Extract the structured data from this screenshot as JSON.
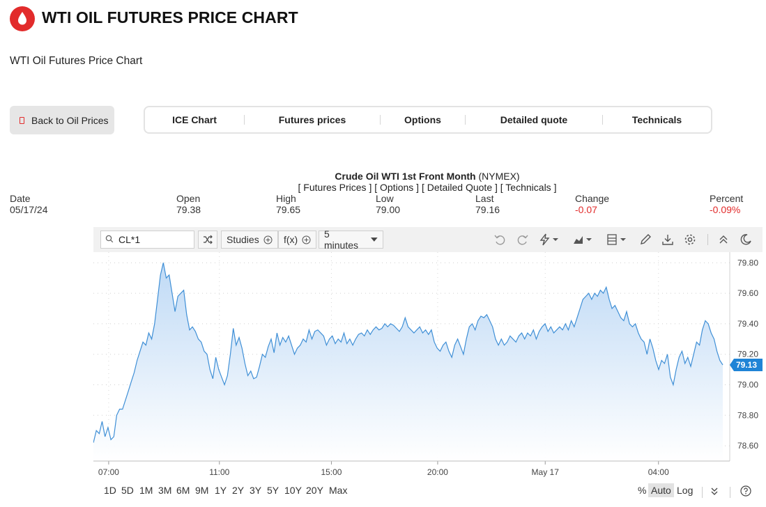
{
  "header": {
    "title": "WTI OIL FUTURES PRICE CHART",
    "subtitle": "WTI Oil Futures Price Chart",
    "logo_icon": "oil-drop-icon",
    "brand_color": "#e22b2b"
  },
  "nav": {
    "back_label": "Back to Oil Prices",
    "tabs": [
      {
        "label": "ICE Chart"
      },
      {
        "label": "Futures prices"
      },
      {
        "label": "Options"
      },
      {
        "label": "Detailed quote"
      },
      {
        "label": "Technicals"
      }
    ]
  },
  "quote": {
    "name": "Crude Oil WTI 1st Front Month",
    "exchange": "(NYMEX)",
    "links": [
      "[ Futures Prices ]",
      "[ Options ]",
      "[ Detailed Quote ]",
      "[ Technicals ]"
    ],
    "stats": [
      {
        "label": "Date",
        "value": "05/17/24",
        "negative": false
      },
      {
        "label": "Open",
        "value": "79.38",
        "negative": false
      },
      {
        "label": "High",
        "value": "79.65",
        "negative": false
      },
      {
        "label": "Low",
        "value": "79.00",
        "negative": false
      },
      {
        "label": "Last",
        "value": "79.16",
        "negative": false
      },
      {
        "label": "Change",
        "value": "-0.07",
        "negative": true
      },
      {
        "label": "Percent",
        "value": "-0.09%",
        "negative": true
      }
    ]
  },
  "toolbar": {
    "symbol": "CL*1",
    "studies_label": "Studies",
    "fx_label": "f(x)",
    "interval_label": "5 minutes",
    "icons": [
      "undo-icon",
      "redo-icon",
      "lightning-icon",
      "chart-type-icon",
      "layout-icon",
      "pencil-icon",
      "download-icon",
      "settings-icon",
      "collapse-icon",
      "dark-mode-icon"
    ]
  },
  "ranges": [
    "1D",
    "5D",
    "1M",
    "3M",
    "6M",
    "9M",
    "1Y",
    "2Y",
    "3Y",
    "5Y",
    "10Y",
    "20Y",
    "Max"
  ],
  "scale": {
    "percent": "%",
    "auto": "Auto",
    "log": "Log"
  },
  "chart_data": {
    "type": "area",
    "title": "",
    "xlabel": "",
    "ylabel": "",
    "x_ticks": [
      "07:00",
      "11:00",
      "15:00",
      "20:00",
      "May 17",
      "04:00"
    ],
    "y_ticks": [
      "79.80",
      "79.60",
      "79.40",
      "79.20",
      "79.00",
      "78.80",
      "78.60"
    ],
    "ylim": [
      78.5,
      79.87
    ],
    "last_price": "79.13",
    "grid": true,
    "line_color": "#3f8fd6",
    "fill_color": "#cfe3f7",
    "series": [
      {
        "values": [
          78.62,
          78.7,
          78.68,
          78.76,
          78.66,
          78.72,
          78.64,
          78.66,
          78.8,
          78.84,
          78.84,
          78.9,
          78.96,
          79.02,
          79.08,
          79.16,
          79.22,
          79.28,
          79.26,
          79.34,
          79.3,
          79.4,
          79.56,
          79.72,
          79.8,
          79.7,
          79.72,
          79.6,
          79.48,
          79.58,
          79.6,
          79.62,
          79.46,
          79.36,
          79.38,
          79.35,
          79.3,
          79.28,
          79.22,
          79.2,
          79.1,
          79.04,
          79.18,
          79.1,
          79.05,
          79.0,
          79.06,
          79.2,
          79.37,
          79.26,
          79.31,
          79.24,
          79.14,
          79.06,
          79.09,
          79.04,
          79.05,
          79.12,
          79.2,
          79.18,
          79.25,
          79.3,
          79.21,
          79.34,
          79.26,
          79.31,
          79.28,
          79.32,
          79.26,
          79.2,
          79.24,
          79.26,
          79.3,
          79.28,
          79.36,
          79.3,
          79.35,
          79.36,
          79.34,
          79.32,
          79.26,
          79.3,
          79.32,
          79.27,
          79.3,
          79.28,
          79.34,
          79.27,
          79.3,
          79.26,
          79.3,
          79.33,
          79.34,
          79.32,
          79.36,
          79.33,
          79.36,
          79.38,
          79.36,
          79.37,
          79.4,
          79.38,
          79.4,
          79.39,
          79.37,
          79.35,
          79.38,
          79.44,
          79.38,
          79.36,
          79.34,
          79.36,
          79.38,
          79.34,
          79.36,
          79.33,
          79.36,
          79.28,
          79.24,
          79.22,
          79.26,
          79.28,
          79.22,
          79.18,
          79.26,
          79.3,
          79.25,
          79.2,
          79.3,
          79.38,
          79.4,
          79.36,
          79.42,
          79.45,
          79.44,
          79.46,
          79.42,
          79.38,
          79.3,
          79.26,
          79.3,
          79.26,
          79.28,
          79.32,
          79.3,
          79.28,
          79.32,
          79.34,
          79.3,
          79.34,
          79.32,
          79.36,
          79.3,
          79.35,
          79.38,
          79.4,
          79.35,
          79.38,
          79.34,
          79.36,
          79.38,
          79.36,
          79.4,
          79.36,
          79.42,
          79.38,
          79.44,
          79.5,
          79.56,
          79.58,
          79.6,
          79.56,
          79.6,
          79.58,
          79.62,
          79.6,
          79.64,
          79.56,
          79.5,
          79.52,
          79.48,
          79.44,
          79.42,
          79.48,
          79.4,
          79.38,
          79.4,
          79.34,
          79.3,
          79.28,
          79.2,
          79.3,
          79.24,
          79.16,
          79.1,
          79.16,
          79.14,
          79.2,
          79.05,
          79.0,
          79.1,
          79.18,
          79.22,
          79.14,
          79.18,
          79.12,
          79.2,
          79.28,
          79.26,
          79.36,
          79.42,
          79.4,
          79.34,
          79.3,
          79.22,
          79.16,
          79.13
        ]
      }
    ]
  }
}
